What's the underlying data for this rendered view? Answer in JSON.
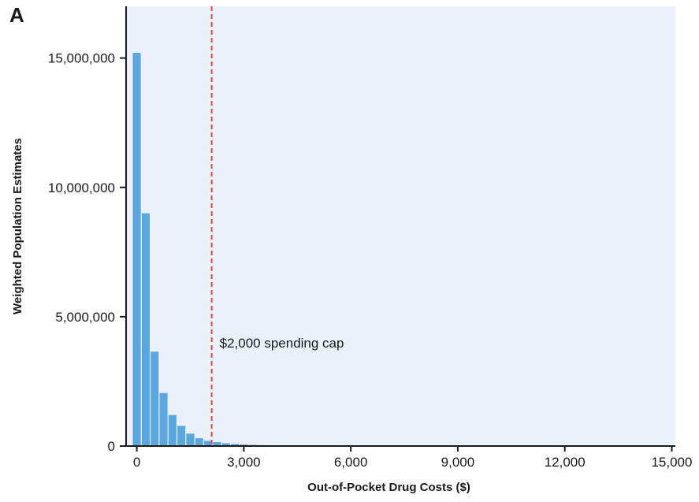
{
  "panel_label": "A",
  "chart_data": {
    "type": "bar",
    "title": "",
    "xlabel": "Out-of-Pocket Drug Costs ($)",
    "ylabel": "Weighted Population Estimates",
    "xlim": [
      -300,
      15100
    ],
    "ylim": [
      0,
      17000000
    ],
    "xticks": [
      0,
      3000,
      6000,
      9000,
      12000,
      15000
    ],
    "xtick_labels": [
      "0",
      "3,000",
      "6,000",
      "9,000",
      "12,000",
      "15,000"
    ],
    "yticks": [
      0,
      5000000,
      10000000,
      15000000
    ],
    "ytick_labels": [
      "0",
      "5,000,000",
      "10,000,000",
      "15,000,000"
    ],
    "bin_width": 250,
    "bin_start": -125,
    "values": [
      15200000,
      9000000,
      3650000,
      2050000,
      1200000,
      780000,
      480000,
      300000,
      200000,
      150000,
      110000,
      80000,
      60000,
      45000,
      35000,
      28000,
      22000,
      18000,
      15000,
      12000,
      10000,
      9000,
      8000,
      7000,
      6000,
      5500,
      5000,
      4500,
      4000,
      3500,
      3000,
      2800,
      2600,
      2400,
      2200,
      2000,
      1800,
      1600,
      1500,
      1400,
      1300,
      1200,
      1100,
      1000,
      900,
      800,
      700,
      650,
      600,
      550,
      500,
      480,
      460,
      440,
      420,
      400,
      380,
      360,
      340,
      320,
      300
    ],
    "bar_color": "#5aa6df",
    "background_color": "#eaf1fa",
    "reference_line": {
      "x": 2100,
      "label": "$2,000 spending cap",
      "color": "#e8483a"
    }
  }
}
